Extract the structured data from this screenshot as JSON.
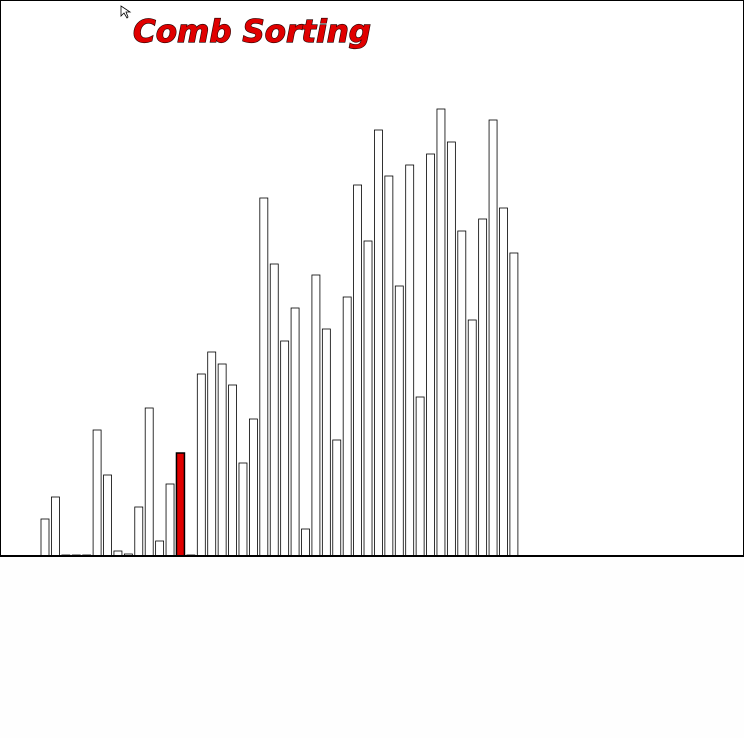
{
  "chart_data": {
    "type": "bar",
    "title": "Comb Sorting",
    "values": [
      37,
      59,
      1,
      1,
      1,
      126,
      81,
      5,
      2,
      49,
      148,
      15,
      72,
      103,
      1,
      182,
      204,
      192,
      171,
      93,
      137,
      358,
      292,
      215,
      248,
      27,
      281,
      227,
      116,
      259,
      371,
      315,
      426,
      380,
      270,
      391,
      159,
      402,
      447,
      414,
      325,
      236,
      337,
      436,
      348,
      303
    ],
    "color": "#ffffff",
    "highlight_index": 13,
    "highlight_color": "#e00000"
  }
}
